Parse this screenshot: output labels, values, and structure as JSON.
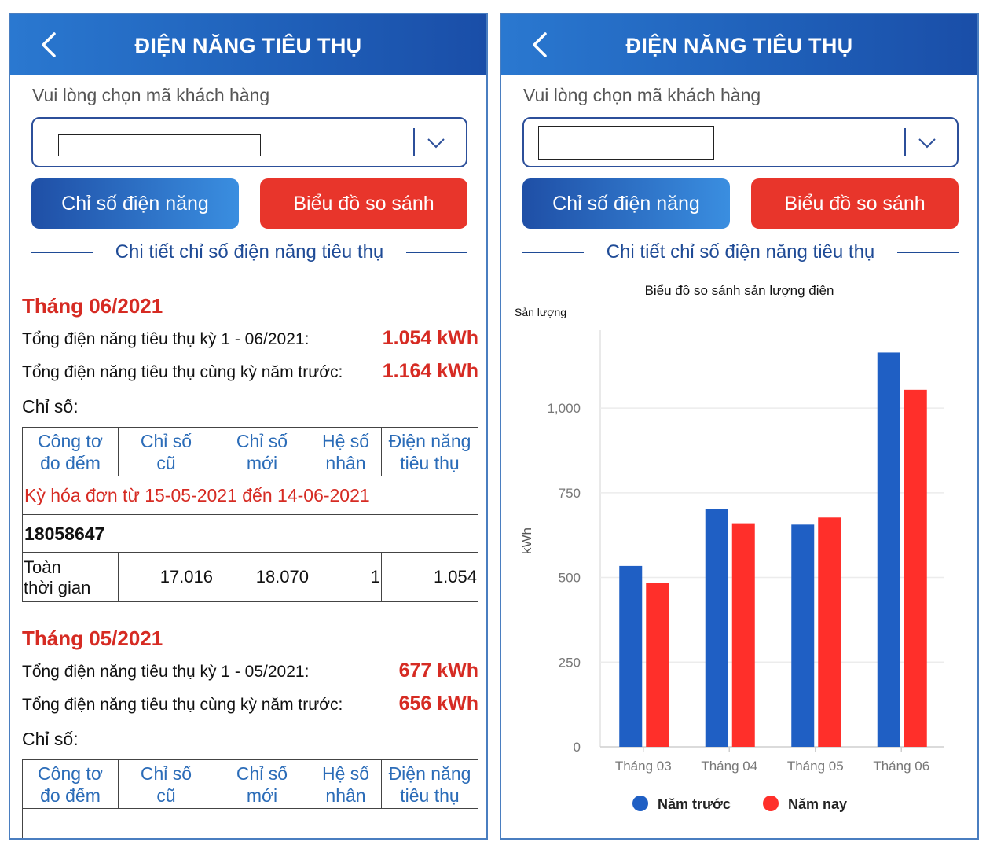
{
  "header": {
    "title": "ĐIỆN NĂNG TIÊU THỤ"
  },
  "select": {
    "prompt": "Vui lòng chọn mã khách hàng"
  },
  "buttons": {
    "index": "Chỉ số điện năng",
    "compare": "Biểu đồ so sánh"
  },
  "detail_title": "Chi tiết chỉ số điện năng tiêu thụ",
  "colors": {
    "header_blue": "#1f5fb8",
    "red": "#d62b23",
    "blue_bar": "#1f5fc4",
    "red_bar": "#ff2f2a"
  },
  "months": [
    {
      "title": "Tháng 06/2021",
      "total_label": "Tổng điện năng tiêu thụ kỳ 1 - 06/2021:",
      "total_value": "1.054 kWh",
      "prev_label": "Tổng điện năng tiêu thụ cùng kỳ năm trước:",
      "prev_value": "1.164 kWh",
      "chiso_label": "Chỉ số:",
      "table": {
        "headers": [
          [
            "Công tơ",
            "đo đếm"
          ],
          [
            "Chỉ số",
            "cũ"
          ],
          [
            "Chỉ số",
            "mới"
          ],
          [
            "Hệ số",
            "nhân"
          ],
          [
            "Điện năng",
            "tiêu thụ"
          ]
        ],
        "period": "Kỳ hóa đơn từ 15-05-2021 đến 14-06-2021",
        "meter": "18058647",
        "row": {
          "c1a": "Toàn",
          "c1b": "thời gian",
          "c2": "17.016",
          "c3": "18.070",
          "c4": "1",
          "c5": "1.054"
        }
      }
    },
    {
      "title": "Tháng 05/2021",
      "total_label": "Tổng điện năng tiêu thụ kỳ 1 - 05/2021:",
      "total_value": "677 kWh",
      "prev_label": "Tổng điện năng tiêu thụ cùng kỳ năm trước:",
      "prev_value": "656 kWh",
      "chiso_label": "Chỉ số:",
      "table": {
        "headers": [
          [
            "Công tơ",
            "đo đếm"
          ],
          [
            "Chỉ số",
            "cũ"
          ],
          [
            "Chỉ số",
            "mới"
          ],
          [
            "Hệ số",
            "nhân"
          ],
          [
            "Điện năng",
            "tiêu thụ"
          ]
        ]
      }
    }
  ],
  "chart_data": {
    "type": "bar",
    "title": "Biểu đồ so sánh sản lượng điện",
    "subtitle": "Sản lượng",
    "ylabel": "kWh",
    "xlabel": "",
    "categories": [
      "Tháng 03",
      "Tháng 04",
      "Tháng 05",
      "Tháng 06"
    ],
    "series": [
      {
        "name": "Năm trước",
        "values": [
          534,
          702,
          656,
          1164
        ],
        "color": "#1f5fc4"
      },
      {
        "name": "Năm nay",
        "values": [
          484,
          660,
          677,
          1054
        ],
        "color": "#ff2f2a"
      }
    ],
    "yticks": [
      0,
      250,
      500,
      750,
      1000
    ],
    "ytick_labels": [
      "0",
      "250",
      "500",
      "750",
      "1,000"
    ],
    "ylim": [
      0,
      1230
    ],
    "grid": true,
    "legend_position": "bottom"
  }
}
